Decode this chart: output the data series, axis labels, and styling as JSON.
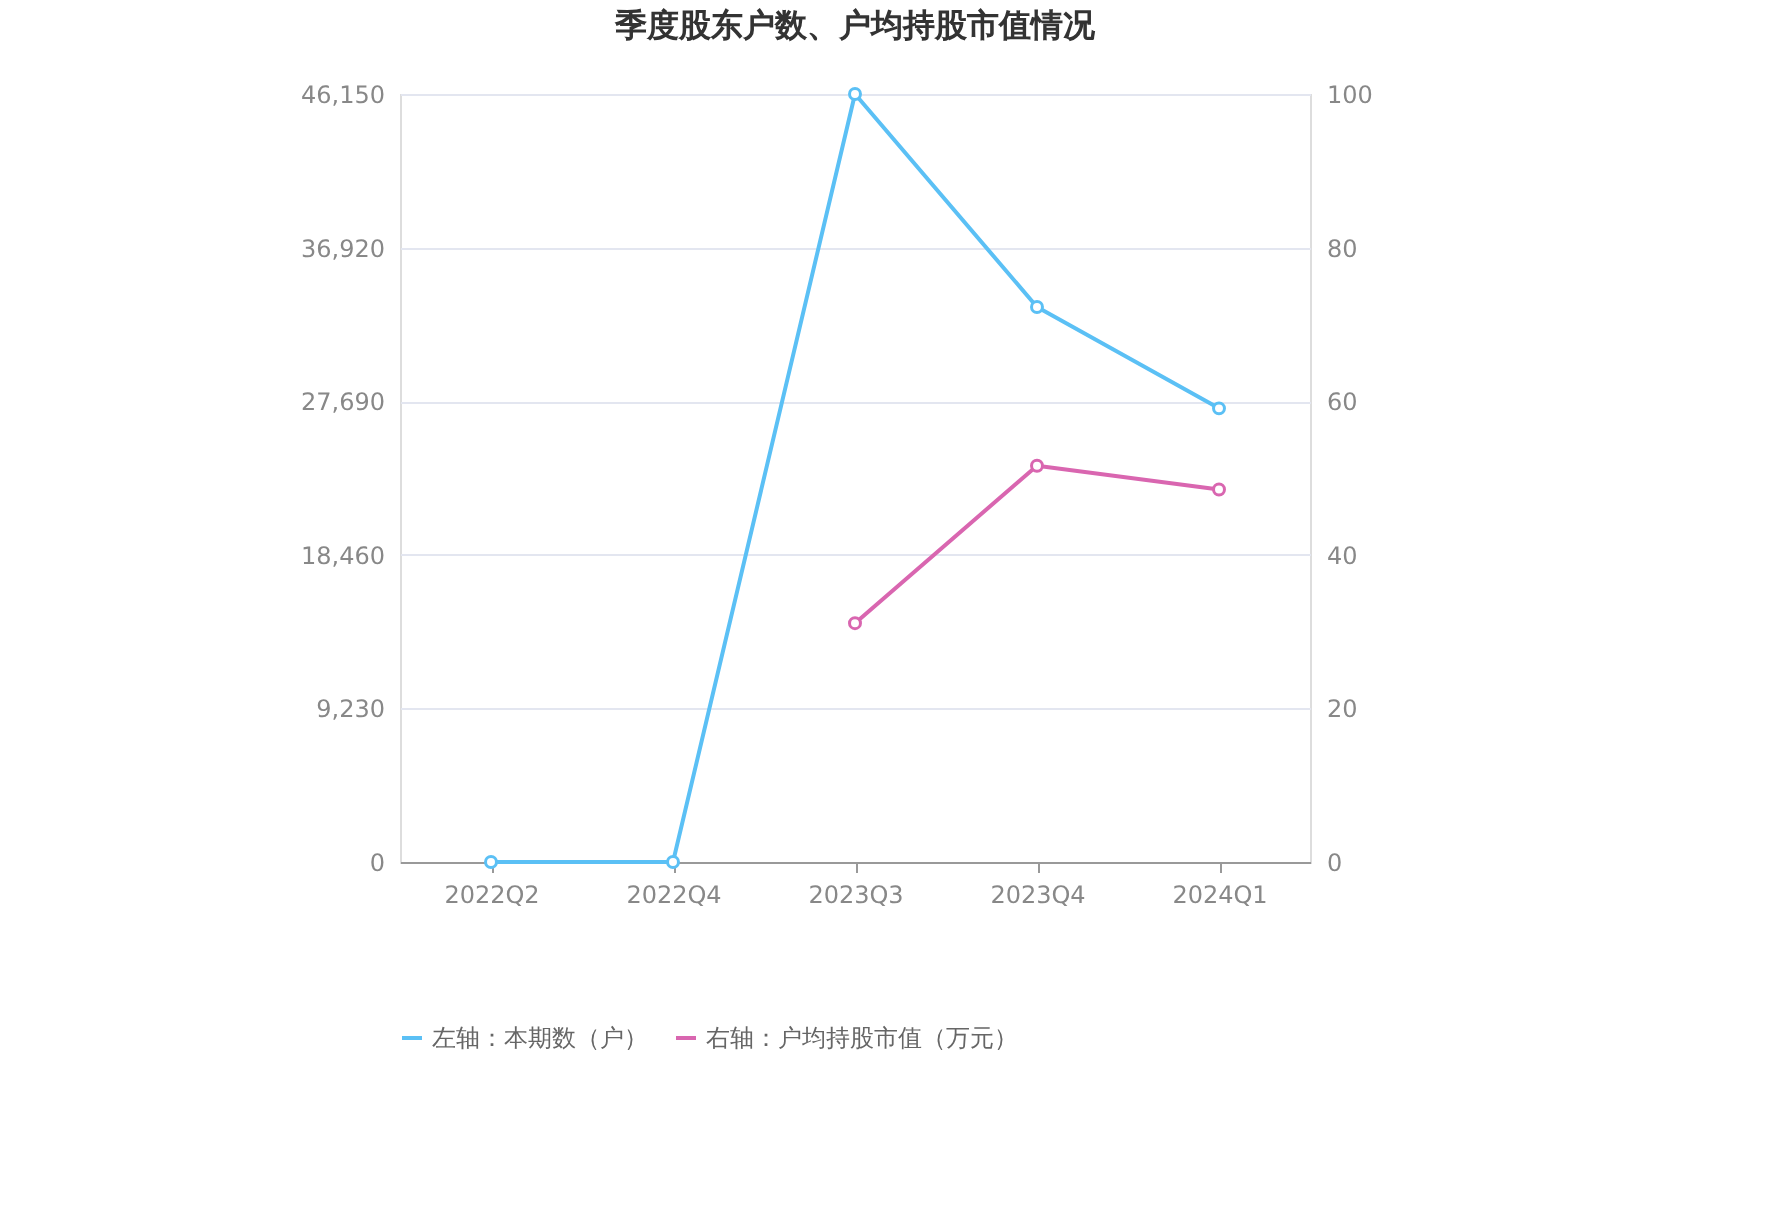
{
  "chart_data": {
    "type": "line",
    "title": "季度股东户数、户均持股市值情况",
    "categories": [
      "2022Q2",
      "2022Q4",
      "2023Q3",
      "2023Q4",
      "2024Q1"
    ],
    "series": [
      {
        "name": "左轴：本期数（户）",
        "color": "#5bc0f5",
        "values": [
          0,
          0,
          46150,
          33350,
          27260
        ]
      },
      {
        "name": "右轴：户均持股市值（万元）",
        "color": "#d966b0",
        "axis": "y2",
        "values": [
          null,
          null,
          31.1,
          51.6,
          48.5
        ]
      }
    ],
    "ylim": [
      0,
      46150
    ],
    "yticks": [
      {
        "value": 0,
        "label": "0"
      },
      {
        "value": 9230,
        "label": "9,230"
      },
      {
        "value": 18460,
        "label": "18,460"
      },
      {
        "value": 27690,
        "label": "27,690"
      },
      {
        "value": 36920,
        "label": "36,920"
      },
      {
        "value": 46150,
        "label": "46,150"
      }
    ],
    "y2lim": [
      0,
      100
    ],
    "y2ticks": [
      0,
      20,
      40,
      60,
      80,
      100
    ],
    "grid": "y",
    "legend": "bottom",
    "marker": "circle",
    "line_style": "solid"
  }
}
